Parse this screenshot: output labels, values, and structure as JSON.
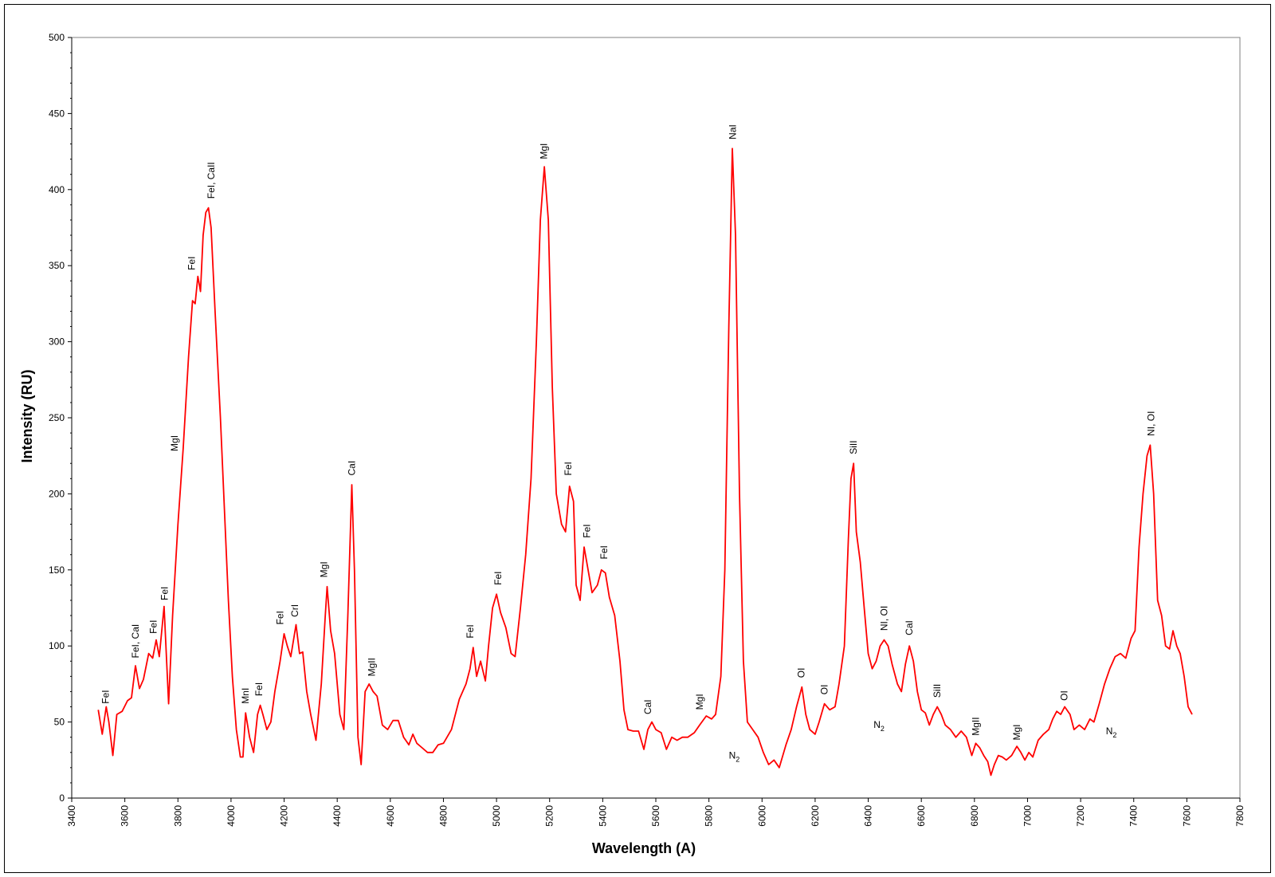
{
  "chart_data": {
    "type": "line",
    "xlabel": "Wavelength (A)",
    "ylabel": "Intensity (RU)",
    "xlim": [
      3400,
      7800
    ],
    "ylim": [
      0,
      500
    ],
    "x_ticks": [
      3400,
      3600,
      3800,
      4000,
      4200,
      4400,
      4600,
      4800,
      5000,
      5200,
      5400,
      5600,
      5800,
      6000,
      6200,
      6400,
      6600,
      6800,
      7000,
      7200,
      7400,
      7600,
      7800
    ],
    "y_ticks": [
      0,
      50,
      100,
      150,
      200,
      250,
      300,
      350,
      400,
      450,
      500
    ],
    "grid": false,
    "line_color": "#ff0000",
    "series": [
      {
        "points": [
          [
            3500,
            58
          ],
          [
            3515,
            42
          ],
          [
            3530,
            60
          ],
          [
            3540,
            50
          ],
          [
            3555,
            28
          ],
          [
            3570,
            55
          ],
          [
            3590,
            57
          ],
          [
            3610,
            64
          ],
          [
            3625,
            66
          ],
          [
            3640,
            87
          ],
          [
            3655,
            72
          ],
          [
            3670,
            78
          ],
          [
            3690,
            95
          ],
          [
            3705,
            92
          ],
          [
            3718,
            104
          ],
          [
            3730,
            93
          ],
          [
            3748,
            126
          ],
          [
            3765,
            62
          ],
          [
            3780,
            120
          ],
          [
            3800,
            180
          ],
          [
            3820,
            230
          ],
          [
            3840,
            290
          ],
          [
            3855,
            327
          ],
          [
            3865,
            325
          ],
          [
            3875,
            343
          ],
          [
            3885,
            333
          ],
          [
            3895,
            370
          ],
          [
            3905,
            385
          ],
          [
            3915,
            388
          ],
          [
            3925,
            375
          ],
          [
            3940,
            320
          ],
          [
            3960,
            250
          ],
          [
            3975,
            190
          ],
          [
            3990,
            130
          ],
          [
            4005,
            80
          ],
          [
            4020,
            45
          ],
          [
            4035,
            27
          ],
          [
            4045,
            27
          ],
          [
            4055,
            56
          ],
          [
            4070,
            40
          ],
          [
            4085,
            30
          ],
          [
            4100,
            55
          ],
          [
            4110,
            61
          ],
          [
            4120,
            55
          ],
          [
            4135,
            45
          ],
          [
            4150,
            50
          ],
          [
            4165,
            70
          ],
          [
            4185,
            90
          ],
          [
            4200,
            108
          ],
          [
            4212,
            100
          ],
          [
            4225,
            93
          ],
          [
            4245,
            114
          ],
          [
            4258,
            95
          ],
          [
            4270,
            96
          ],
          [
            4285,
            70
          ],
          [
            4300,
            55
          ],
          [
            4320,
            38
          ],
          [
            4340,
            75
          ],
          [
            4355,
            120
          ],
          [
            4362,
            139
          ],
          [
            4375,
            110
          ],
          [
            4390,
            95
          ],
          [
            4410,
            55
          ],
          [
            4425,
            45
          ],
          [
            4440,
            120
          ],
          [
            4455,
            206
          ],
          [
            4465,
            150
          ],
          [
            4478,
            40
          ],
          [
            4490,
            22
          ],
          [
            4505,
            70
          ],
          [
            4520,
            75
          ],
          [
            4535,
            70
          ],
          [
            4550,
            67
          ],
          [
            4570,
            48
          ],
          [
            4590,
            45
          ],
          [
            4610,
            51
          ],
          [
            4630,
            51
          ],
          [
            4650,
            40
          ],
          [
            4670,
            35
          ],
          [
            4685,
            42
          ],
          [
            4700,
            36
          ],
          [
            4720,
            33
          ],
          [
            4740,
            30
          ],
          [
            4760,
            30
          ],
          [
            4780,
            35
          ],
          [
            4800,
            36
          ],
          [
            4830,
            45
          ],
          [
            4860,
            65
          ],
          [
            4885,
            75
          ],
          [
            4900,
            85
          ],
          [
            4912,
            99
          ],
          [
            4925,
            80
          ],
          [
            4940,
            90
          ],
          [
            4958,
            77
          ],
          [
            4970,
            100
          ],
          [
            4985,
            125
          ],
          [
            5000,
            134
          ],
          [
            5015,
            122
          ],
          [
            5035,
            112
          ],
          [
            5055,
            95
          ],
          [
            5070,
            93
          ],
          [
            5090,
            125
          ],
          [
            5110,
            160
          ],
          [
            5130,
            210
          ],
          [
            5150,
            300
          ],
          [
            5165,
            380
          ],
          [
            5180,
            415
          ],
          [
            5195,
            380
          ],
          [
            5210,
            270
          ],
          [
            5225,
            200
          ],
          [
            5245,
            180
          ],
          [
            5260,
            175
          ],
          [
            5275,
            205
          ],
          [
            5290,
            195
          ],
          [
            5300,
            140
          ],
          [
            5315,
            130
          ],
          [
            5330,
            165
          ],
          [
            5345,
            150
          ],
          [
            5360,
            135
          ],
          [
            5380,
            140
          ],
          [
            5395,
            150
          ],
          [
            5410,
            148
          ],
          [
            5425,
            132
          ],
          [
            5445,
            120
          ],
          [
            5465,
            90
          ],
          [
            5480,
            58
          ],
          [
            5495,
            45
          ],
          [
            5515,
            44
          ],
          [
            5535,
            44
          ],
          [
            5555,
            32
          ],
          [
            5570,
            45
          ],
          [
            5585,
            50
          ],
          [
            5600,
            45
          ],
          [
            5620,
            43
          ],
          [
            5640,
            32
          ],
          [
            5660,
            40
          ],
          [
            5680,
            38
          ],
          [
            5700,
            40
          ],
          [
            5720,
            40
          ],
          [
            5745,
            43
          ],
          [
            5765,
            48
          ],
          [
            5790,
            54
          ],
          [
            5810,
            52
          ],
          [
            5825,
            55
          ],
          [
            5845,
            80
          ],
          [
            5860,
            150
          ],
          [
            5875,
            310
          ],
          [
            5888,
            427
          ],
          [
            5900,
            370
          ],
          [
            5915,
            200
          ],
          [
            5930,
            90
          ],
          [
            5945,
            50
          ],
          [
            5965,
            45
          ],
          [
            5985,
            40
          ],
          [
            6005,
            30
          ],
          [
            6025,
            22
          ],
          [
            6045,
            25
          ],
          [
            6065,
            20
          ],
          [
            6090,
            35
          ],
          [
            6110,
            45
          ],
          [
            6130,
            60
          ],
          [
            6150,
            73
          ],
          [
            6165,
            55
          ],
          [
            6180,
            45
          ],
          [
            6200,
            42
          ],
          [
            6215,
            50
          ],
          [
            6235,
            62
          ],
          [
            6255,
            58
          ],
          [
            6275,
            60
          ],
          [
            6290,
            75
          ],
          [
            6310,
            100
          ],
          [
            6325,
            170
          ],
          [
            6335,
            210
          ],
          [
            6345,
            220
          ],
          [
            6355,
            175
          ],
          [
            6370,
            155
          ],
          [
            6385,
            125
          ],
          [
            6400,
            95
          ],
          [
            6415,
            85
          ],
          [
            6430,
            90
          ],
          [
            6445,
            100
          ],
          [
            6460,
            104
          ],
          [
            6475,
            100
          ],
          [
            6490,
            88
          ],
          [
            6510,
            75
          ],
          [
            6525,
            70
          ],
          [
            6540,
            88
          ],
          [
            6555,
            100
          ],
          [
            6570,
            90
          ],
          [
            6585,
            70
          ],
          [
            6600,
            58
          ],
          [
            6615,
            56
          ],
          [
            6630,
            48
          ],
          [
            6645,
            55
          ],
          [
            6660,
            60
          ],
          [
            6675,
            55
          ],
          [
            6690,
            48
          ],
          [
            6710,
            45
          ],
          [
            6730,
            40
          ],
          [
            6750,
            44
          ],
          [
            6770,
            40
          ],
          [
            6790,
            28
          ],
          [
            6805,
            36
          ],
          [
            6820,
            33
          ],
          [
            6835,
            28
          ],
          [
            6850,
            24
          ],
          [
            6862,
            15
          ],
          [
            6875,
            22
          ],
          [
            6890,
            28
          ],
          [
            6905,
            27
          ],
          [
            6920,
            25
          ],
          [
            6940,
            28
          ],
          [
            6960,
            34
          ],
          [
            6975,
            30
          ],
          [
            6990,
            25
          ],
          [
            7005,
            30
          ],
          [
            7020,
            27
          ],
          [
            7040,
            38
          ],
          [
            7060,
            42
          ],
          [
            7080,
            45
          ],
          [
            7095,
            52
          ],
          [
            7110,
            57
          ],
          [
            7125,
            55
          ],
          [
            7140,
            60
          ],
          [
            7160,
            55
          ],
          [
            7175,
            45
          ],
          [
            7195,
            48
          ],
          [
            7215,
            45
          ],
          [
            7235,
            52
          ],
          [
            7250,
            50
          ],
          [
            7270,
            62
          ],
          [
            7290,
            75
          ],
          [
            7310,
            85
          ],
          [
            7330,
            93
          ],
          [
            7350,
            95
          ],
          [
            7370,
            92
          ],
          [
            7390,
            105
          ],
          [
            7405,
            110
          ],
          [
            7420,
            165
          ],
          [
            7435,
            200
          ],
          [
            7450,
            225
          ],
          [
            7462,
            232
          ],
          [
            7475,
            200
          ],
          [
            7490,
            130
          ],
          [
            7505,
            120
          ],
          [
            7520,
            100
          ],
          [
            7535,
            98
          ],
          [
            7548,
            110
          ],
          [
            7562,
            100
          ],
          [
            7575,
            95
          ],
          [
            7590,
            80
          ],
          [
            7605,
            60
          ],
          [
            7620,
            55
          ]
        ]
      }
    ],
    "annotations": [
      {
        "text": "FeI",
        "x": 3528,
        "y": 62
      },
      {
        "text": "FeI, CaI",
        "x": 3640,
        "y": 92
      },
      {
        "text": "FeI",
        "x": 3708,
        "y": 108
      },
      {
        "text": "FeI",
        "x": 3750,
        "y": 130
      },
      {
        "text": "MgI",
        "x": 3787,
        "y": 228
      },
      {
        "text": "FeI",
        "x": 3852,
        "y": 347
      },
      {
        "text": "FeI, CaII",
        "x": 3925,
        "y": 394
      },
      {
        "text": "MnI",
        "x": 4055,
        "y": 62
      },
      {
        "text": "FeI",
        "x": 4105,
        "y": 67
      },
      {
        "text": "FeI",
        "x": 4185,
        "y": 114
      },
      {
        "text": "CrI",
        "x": 4240,
        "y": 119
      },
      {
        "text": "MgI",
        "x": 4350,
        "y": 145
      },
      {
        "text": "CaI",
        "x": 4455,
        "y": 212
      },
      {
        "text": "MgII",
        "x": 4530,
        "y": 80
      },
      {
        "text": "FeI",
        "x": 4900,
        "y": 105
      },
      {
        "text": "FeI",
        "x": 5005,
        "y": 140
      },
      {
        "text": "MgI",
        "x": 5178,
        "y": 420
      },
      {
        "text": "FeI",
        "x": 5270,
        "y": 212
      },
      {
        "text": "FeI",
        "x": 5340,
        "y": 171
      },
      {
        "text": "FeI",
        "x": 5405,
        "y": 157
      },
      {
        "text": "CaI",
        "x": 5570,
        "y": 55
      },
      {
        "text": "MgI",
        "x": 5765,
        "y": 58
      },
      {
        "text": "NaI",
        "x": 5890,
        "y": 433
      },
      {
        "text": "OI",
        "x": 6148,
        "y": 79
      },
      {
        "text": "OI",
        "x": 6235,
        "y": 68
      },
      {
        "text": "SiII",
        "x": 6345,
        "y": 226
      },
      {
        "text": "NI, OI",
        "x": 6460,
        "y": 110
      },
      {
        "text": "CaI",
        "x": 6555,
        "y": 107
      },
      {
        "text": "SiII",
        "x": 6660,
        "y": 66
      },
      {
        "text": "MgII",
        "x": 6805,
        "y": 41
      },
      {
        "text": "MgI",
        "x": 6960,
        "y": 38
      },
      {
        "text": "OI",
        "x": 7138,
        "y": 64
      },
      {
        "text": "NI, OI",
        "x": 7465,
        "y": 238
      }
    ],
    "n2_labels": [
      {
        "text": "N",
        "sub": "2",
        "x": 5875,
        "y": 26
      },
      {
        "text": "N",
        "sub": "2",
        "x": 6420,
        "y": 46
      },
      {
        "text": "N",
        "sub": "2",
        "x": 7295,
        "y": 42
      }
    ]
  }
}
